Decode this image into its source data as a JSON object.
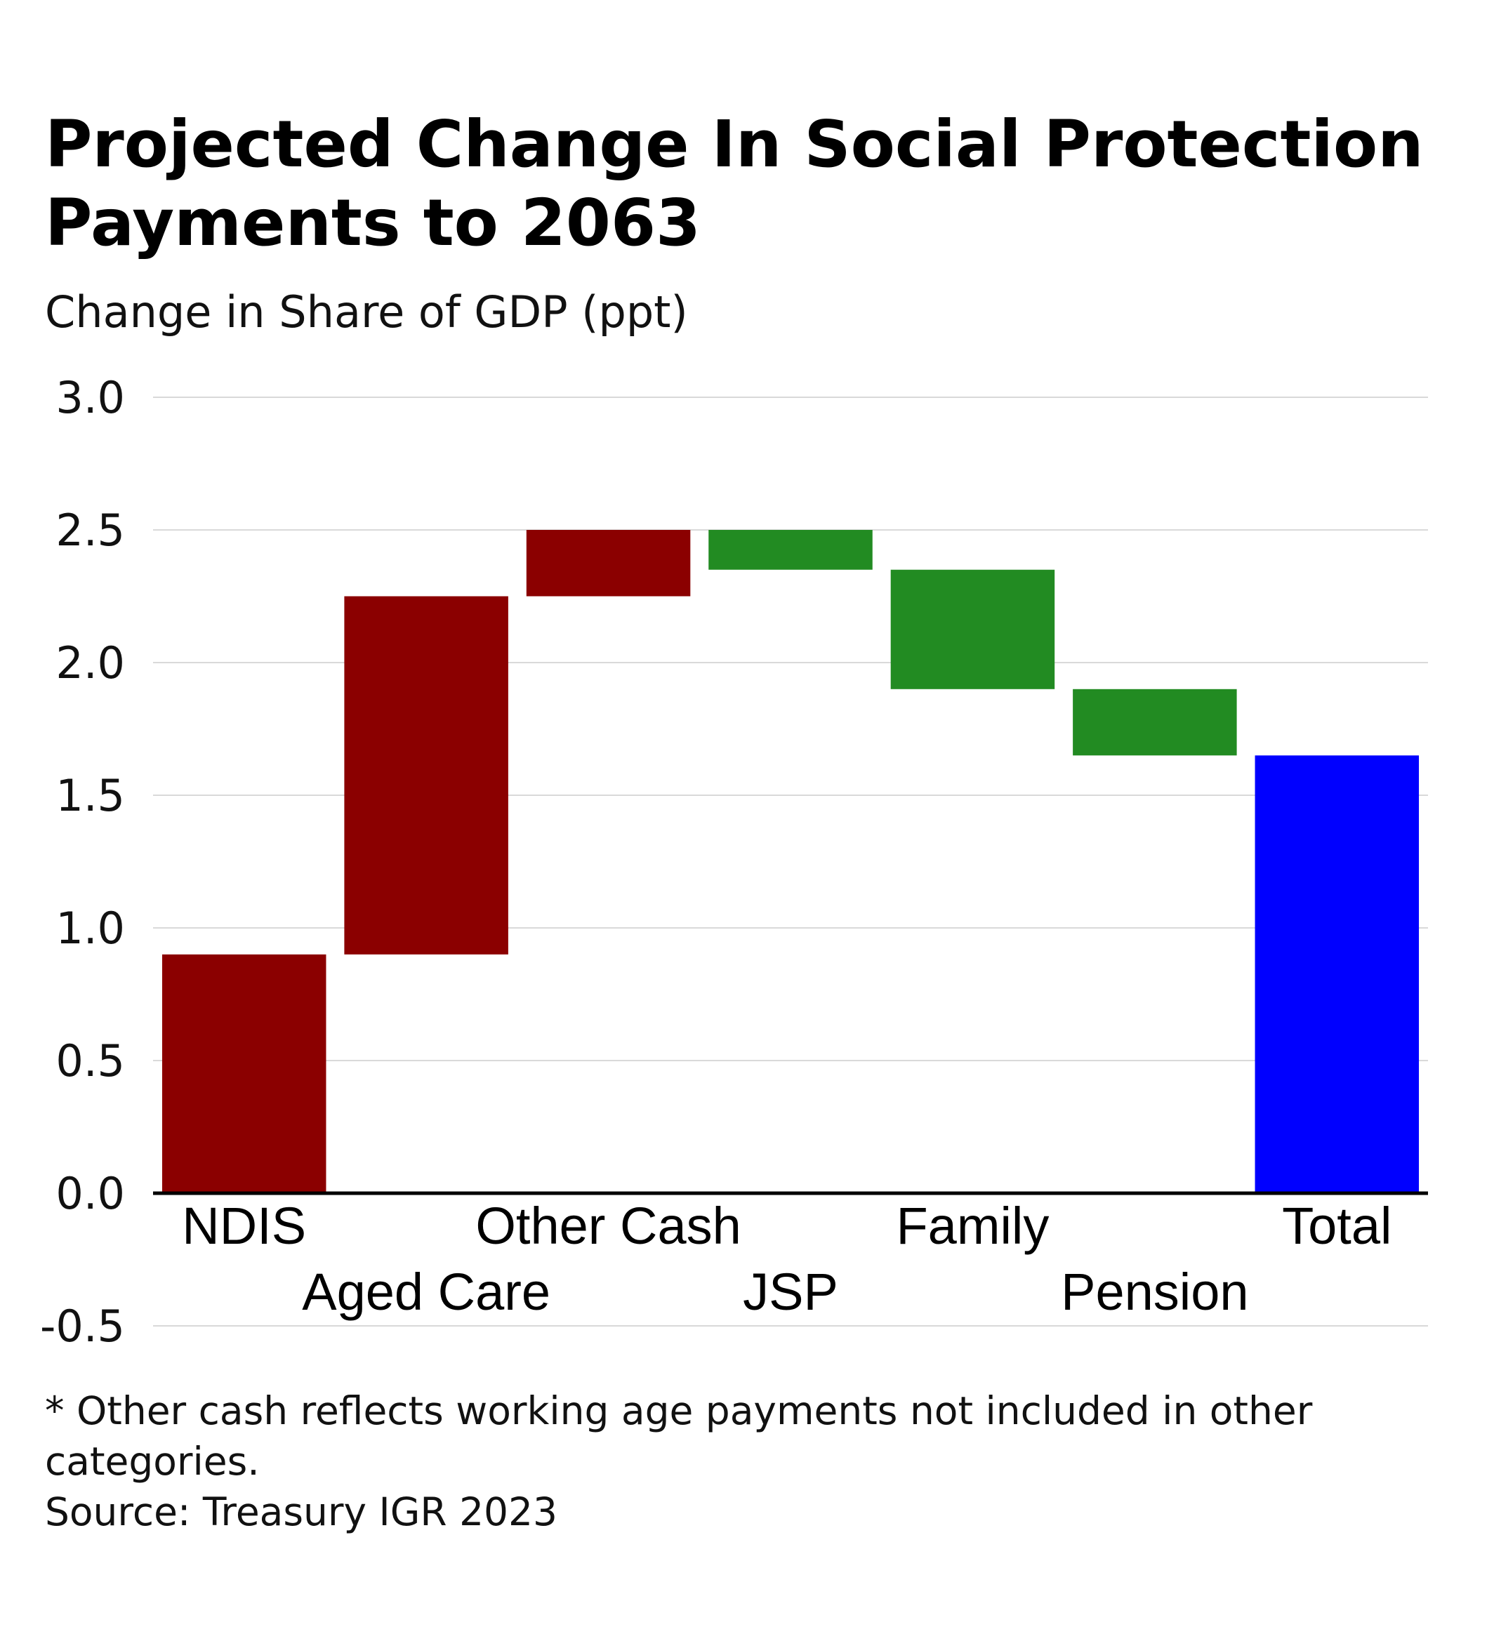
{
  "title": "Projected Change In Social Protection Payments to 2063",
  "subtitle": "Change in Share of GDP (ppt)",
  "footnote": "* Other cash reflects working age payments not included in other categories.",
  "source": "Source: Treasury IGR 2023",
  "chart_data": {
    "type": "bar",
    "variant": "waterfall",
    "categories": [
      "NDIS",
      "Aged Care",
      "Other Cash",
      "JSP",
      "Family",
      "Pension",
      "Total"
    ],
    "values": [
      0.9,
      1.35,
      0.25,
      -0.15,
      -0.45,
      -0.25,
      1.65
    ],
    "cumulative": [
      0.9,
      2.25,
      2.5,
      2.35,
      1.9,
      1.65,
      1.65
    ],
    "ylabel": "Change in Share of GDP (ppt)",
    "ylim": [
      -0.5,
      3.0
    ],
    "yticks": [
      "3.0",
      "2.5",
      "2.0",
      "1.5",
      "1.0",
      "0.5",
      "0.0",
      "-0.5"
    ],
    "ytick_values": [
      3.0,
      2.5,
      2.0,
      1.5,
      1.0,
      0.5,
      0.0,
      -0.5
    ],
    "grid": true,
    "legend": "none",
    "colors": {
      "increase": "#8b0000",
      "decrease": "#228b22",
      "total": "#0000ff",
      "grid": "#d9d9d9",
      "axis": "#000000"
    }
  }
}
